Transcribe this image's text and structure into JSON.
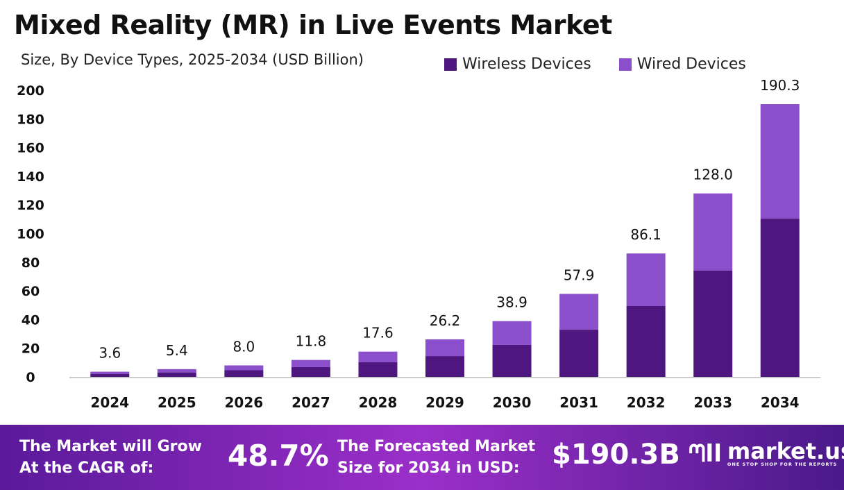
{
  "chart_data": {
    "type": "bar",
    "stacked": true,
    "title": "Mixed Reality (MR) in Live Events Market",
    "subtitle": "Size, By Device Types, 2025-2034 (USD Billion)",
    "categories": [
      "2024",
      "2025",
      "2026",
      "2027",
      "2028",
      "2029",
      "2030",
      "2031",
      "2032",
      "2033",
      "2034"
    ],
    "series": [
      {
        "name": "Wireless Devices",
        "color": "#4e1780",
        "values": [
          2.1,
          3.1,
          4.6,
          6.8,
          10.2,
          14.5,
          22.3,
          32.9,
          49.4,
          74.1,
          110.4
        ]
      },
      {
        "name": "Wired Devices",
        "color": "#8b4fcc",
        "values": [
          1.5,
          2.3,
          3.4,
          5.0,
          7.4,
          11.7,
          16.6,
          25.0,
          36.7,
          53.9,
          79.9
        ]
      }
    ],
    "totals": [
      "3.6",
      "5.4",
      "8.0",
      "11.8",
      "17.6",
      "26.2",
      "38.9",
      "57.9",
      "86.1",
      "128.0",
      "190.3"
    ],
    "yticks": [
      "0",
      "20",
      "40",
      "60",
      "80",
      "100",
      "120",
      "140",
      "160",
      "180",
      "200"
    ],
    "ylim": [
      0,
      200
    ],
    "grid": false,
    "legend": "top-right"
  },
  "footer": {
    "cagr_label": "The Market will Grow At the CAGR of:",
    "cagr_value": "48.7%",
    "forecast_label": "The Forecasted Market Size for 2034 in USD:",
    "forecast_value": "$190.3B",
    "logo_name": "market.us",
    "logo_tagline": "ONE STOP SHOP FOR THE REPORTS"
  }
}
